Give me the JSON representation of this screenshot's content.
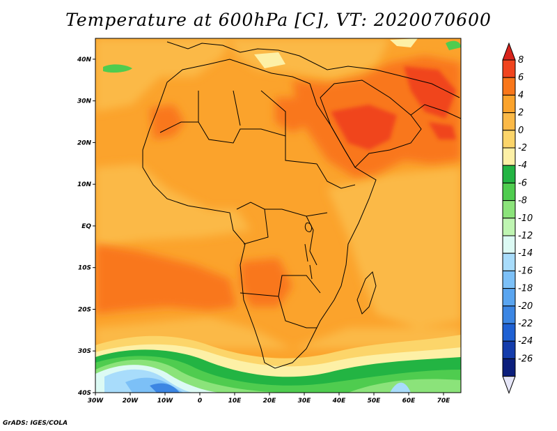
{
  "title": "Temperature at 600hPa [C], VT: 2020070600",
  "credit": "GrADS: IGES/COLA",
  "map": {
    "lon_range": [
      -30,
      75
    ],
    "lat_range": [
      -40,
      45
    ],
    "lon_ticks": [
      {
        "value": -30,
        "label": "30W"
      },
      {
        "value": -20,
        "label": "20W"
      },
      {
        "value": -10,
        "label": "10W"
      },
      {
        "value": 0,
        "label": "0"
      },
      {
        "value": 10,
        "label": "10E"
      },
      {
        "value": 20,
        "label": "20E"
      },
      {
        "value": 30,
        "label": "30E"
      },
      {
        "value": 40,
        "label": "40E"
      },
      {
        "value": 50,
        "label": "50E"
      },
      {
        "value": 60,
        "label": "60E"
      },
      {
        "value": 70,
        "label": "70E"
      }
    ],
    "lat_ticks": [
      {
        "value": 40,
        "label": "40N"
      },
      {
        "value": 30,
        "label": "30N"
      },
      {
        "value": 20,
        "label": "20N"
      },
      {
        "value": 10,
        "label": "10N"
      },
      {
        "value": 0,
        "label": "EQ"
      },
      {
        "value": -10,
        "label": "10S"
      },
      {
        "value": -20,
        "label": "20S"
      },
      {
        "value": -30,
        "label": "30S"
      },
      {
        "value": -40,
        "label": "40S"
      }
    ]
  },
  "colorbar": {
    "labels": [
      "8",
      "6",
      "4",
      "2",
      "0",
      "-2",
      "-4",
      "-6",
      "-8",
      "-10",
      "-12",
      "-14",
      "-16",
      "-18",
      "-20",
      "-22",
      "-24",
      "-26"
    ],
    "colors": [
      "#d8241c",
      "#f0441e",
      "#f9771a",
      "#fba32c",
      "#fbb947",
      "#fcd56a",
      "#fdf0a6",
      "#23b443",
      "#4fcc4f",
      "#8be37a",
      "#bff5b2",
      "#dcfaf4",
      "#a8dcfb",
      "#7cc0f7",
      "#5aa5f0",
      "#3c86e3",
      "#1f61d3",
      "#143cab",
      "#0c1f7c",
      "#e6e6f8"
    ]
  }
}
